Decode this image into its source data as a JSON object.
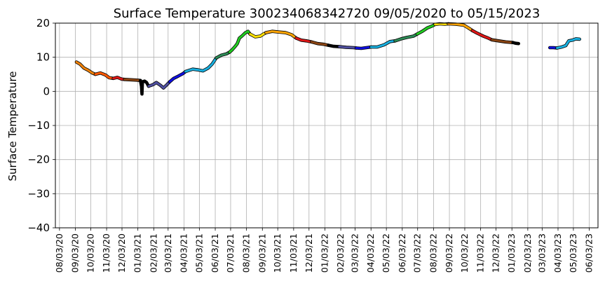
{
  "chart_data": {
    "type": "line",
    "title": "Surface Temperature 300234068342720  09/05/2020 to 05/15/2023",
    "ylabel": "Surface Temperature",
    "xlabel": "",
    "ylim": [
      -40,
      20
    ],
    "yticks": [
      20,
      10,
      0,
      -10,
      -20,
      -30,
      -40
    ],
    "yticklabels": [
      "20",
      "10",
      "0",
      "−10",
      "−20",
      "−30",
      "−40"
    ],
    "xlim": [
      "2020-07-26",
      "2023-06-20"
    ],
    "xticks": [
      "2020-08-03",
      "2020-09-03",
      "2020-10-03",
      "2020-11-03",
      "2020-12-03",
      "2021-01-03",
      "2021-02-03",
      "2021-03-03",
      "2021-04-03",
      "2021-05-03",
      "2021-06-03",
      "2021-07-03",
      "2021-08-03",
      "2021-09-03",
      "2021-10-03",
      "2021-11-03",
      "2021-12-03",
      "2022-01-03",
      "2022-02-03",
      "2022-03-03",
      "2022-04-03",
      "2022-05-03",
      "2022-06-03",
      "2022-07-03",
      "2022-08-03",
      "2022-09-03",
      "2022-10-03",
      "2022-11-03",
      "2022-12-03",
      "2023-01-03",
      "2023-02-03",
      "2023-03-03",
      "2023-04-03",
      "2023-05-03",
      "2023-06-03"
    ],
    "xticklabels": [
      "08/03/20",
      "09/03/20",
      "10/03/20",
      "11/03/20",
      "12/03/20",
      "01/03/21",
      "02/03/21",
      "03/03/21",
      "04/03/21",
      "05/03/21",
      "06/03/21",
      "07/03/21",
      "08/03/21",
      "09/03/21",
      "10/03/21",
      "11/03/21",
      "12/03/21",
      "01/03/22",
      "02/03/22",
      "03/03/22",
      "04/03/22",
      "05/03/22",
      "06/03/22",
      "07/03/22",
      "08/03/22",
      "09/03/22",
      "10/03/22",
      "11/03/22",
      "12/03/22",
      "01/03/23",
      "02/03/23",
      "03/03/23",
      "04/03/23",
      "05/03/23",
      "06/03/23"
    ],
    "grid": true,
    "legend": "none",
    "series": [
      {
        "color": "#f0820a",
        "points": [
          [
            "2020-09-05",
            8.6
          ],
          [
            "2020-09-12",
            8.0
          ],
          [
            "2020-09-20",
            6.8
          ],
          [
            "2020-09-28",
            6.2
          ],
          [
            "2020-10-06",
            5.4
          ],
          [
            "2020-10-12",
            5.0
          ]
        ]
      },
      {
        "color": "#ff5a00",
        "points": [
          [
            "2020-10-12",
            5.0
          ],
          [
            "2020-10-22",
            5.4
          ],
          [
            "2020-11-01",
            4.8
          ],
          [
            "2020-11-08",
            4.0
          ],
          [
            "2020-11-16",
            3.8
          ]
        ]
      },
      {
        "color": "#e01818",
        "points": [
          [
            "2020-11-16",
            3.8
          ],
          [
            "2020-11-24",
            4.1
          ],
          [
            "2020-12-02",
            3.6
          ],
          [
            "2020-12-08",
            3.5
          ]
        ]
      },
      {
        "color": "#8b4513",
        "points": [
          [
            "2020-12-08",
            3.5
          ],
          [
            "2020-12-20",
            3.4
          ],
          [
            "2021-01-01",
            3.3
          ],
          [
            "2021-01-08",
            3.2
          ]
        ]
      },
      {
        "color": "#000000",
        "points": [
          [
            "2021-01-08",
            3.2
          ],
          [
            "2021-01-10",
            1.5
          ],
          [
            "2021-01-11",
            -0.8
          ],
          [
            "2021-01-12",
            2.8
          ],
          [
            "2021-01-16",
            3.0
          ],
          [
            "2021-01-20",
            2.6
          ],
          [
            "2021-01-24",
            1.5
          ]
        ]
      },
      {
        "color": "#5050a0",
        "points": [
          [
            "2021-01-24",
            1.5
          ],
          [
            "2021-02-02",
            2.0
          ],
          [
            "2021-02-08",
            2.6
          ],
          [
            "2021-02-16",
            1.8
          ],
          [
            "2021-02-22",
            1.0
          ],
          [
            "2021-03-01",
            2.0
          ],
          [
            "2021-03-06",
            2.8
          ]
        ]
      },
      {
        "color": "#1010e0",
        "points": [
          [
            "2021-03-06",
            2.8
          ],
          [
            "2021-03-14",
            3.8
          ],
          [
            "2021-03-22",
            4.4
          ],
          [
            "2021-04-01",
            5.2
          ],
          [
            "2021-04-06",
            5.8
          ]
        ]
      },
      {
        "color": "#19b0e0",
        "points": [
          [
            "2021-04-06",
            5.8
          ],
          [
            "2021-04-20",
            6.5
          ],
          [
            "2021-05-01",
            6.3
          ],
          [
            "2021-05-10",
            6.0
          ],
          [
            "2021-05-20",
            6.8
          ],
          [
            "2021-05-28",
            8.0
          ],
          [
            "2021-06-05",
            9.8
          ]
        ]
      },
      {
        "color": "#2e8b57",
        "points": [
          [
            "2021-06-05",
            9.8
          ],
          [
            "2021-06-15",
            10.6
          ],
          [
            "2021-06-25",
            11.0
          ],
          [
            "2021-07-01",
            11.5
          ]
        ]
      },
      {
        "color": "#22cc22",
        "points": [
          [
            "2021-07-01",
            11.5
          ],
          [
            "2021-07-06",
            12.2
          ],
          [
            "2021-07-12",
            13.2
          ],
          [
            "2021-07-16",
            14.0
          ],
          [
            "2021-07-20",
            15.6
          ],
          [
            "2021-07-25",
            16.2
          ],
          [
            "2021-08-01",
            17.2
          ],
          [
            "2021-08-06",
            17.6
          ],
          [
            "2021-08-10",
            16.8
          ]
        ]
      },
      {
        "color": "#ffe000",
        "points": [
          [
            "2021-08-10",
            16.8
          ],
          [
            "2021-08-20",
            16.0
          ],
          [
            "2021-08-30",
            16.2
          ],
          [
            "2021-09-05",
            16.8
          ],
          [
            "2021-09-10",
            17.2
          ]
        ]
      },
      {
        "color": "#ffa500",
        "points": [
          [
            "2021-09-10",
            17.2
          ],
          [
            "2021-09-22",
            17.6
          ],
          [
            "2021-10-05",
            17.4
          ],
          [
            "2021-10-18",
            17.2
          ],
          [
            "2021-10-30",
            16.6
          ],
          [
            "2021-11-08",
            15.6
          ]
        ]
      },
      {
        "color": "#e01818",
        "points": [
          [
            "2021-11-08",
            15.6
          ],
          [
            "2021-11-18",
            15.0
          ],
          [
            "2021-11-28",
            14.8
          ],
          [
            "2021-12-08",
            14.5
          ]
        ]
      },
      {
        "color": "#8b4513",
        "points": [
          [
            "2021-12-08",
            14.5
          ],
          [
            "2021-12-20",
            14.0
          ],
          [
            "2022-01-01",
            13.8
          ],
          [
            "2022-01-10",
            13.5
          ]
        ]
      },
      {
        "color": "#000000",
        "points": [
          [
            "2022-01-10",
            13.5
          ],
          [
            "2022-01-20",
            13.2
          ],
          [
            "2022-01-31",
            13.1
          ]
        ]
      },
      {
        "color": "#5050a0",
        "points": [
          [
            "2022-01-31",
            13.1
          ],
          [
            "2022-02-14",
            12.9
          ],
          [
            "2022-02-28",
            12.8
          ],
          [
            "2022-03-05",
            12.7
          ]
        ]
      },
      {
        "color": "#1010e0",
        "points": [
          [
            "2022-03-05",
            12.7
          ],
          [
            "2022-03-15",
            12.6
          ],
          [
            "2022-03-25",
            12.8
          ],
          [
            "2022-04-03",
            13.0
          ]
        ]
      },
      {
        "color": "#19b0e0",
        "points": [
          [
            "2022-04-03",
            13.0
          ],
          [
            "2022-04-15",
            13.0
          ],
          [
            "2022-04-28",
            13.6
          ],
          [
            "2022-05-10",
            14.6
          ],
          [
            "2022-05-20",
            14.8
          ]
        ]
      },
      {
        "color": "#2e8b57",
        "points": [
          [
            "2022-05-20",
            14.8
          ],
          [
            "2022-06-01",
            15.4
          ],
          [
            "2022-06-12",
            15.8
          ],
          [
            "2022-06-25",
            16.2
          ],
          [
            "2022-07-02",
            16.8
          ]
        ]
      },
      {
        "color": "#22cc22",
        "points": [
          [
            "2022-07-02",
            16.8
          ],
          [
            "2022-07-12",
            17.6
          ],
          [
            "2022-07-22",
            18.6
          ],
          [
            "2022-08-01",
            19.2
          ],
          [
            "2022-08-06",
            19.6
          ]
        ]
      },
      {
        "color": "#ffe000",
        "points": [
          [
            "2022-08-06",
            19.6
          ],
          [
            "2022-08-15",
            19.8
          ],
          [
            "2022-08-25",
            19.7
          ],
          [
            "2022-09-01",
            19.8
          ]
        ]
      },
      {
        "color": "#ffa500",
        "points": [
          [
            "2022-09-01",
            19.8
          ],
          [
            "2022-09-15",
            19.7
          ],
          [
            "2022-10-01",
            19.4
          ],
          [
            "2022-10-10",
            18.6
          ],
          [
            "2022-10-18",
            17.8
          ]
        ]
      },
      {
        "color": "#e01818",
        "points": [
          [
            "2022-10-18",
            17.8
          ],
          [
            "2022-10-28",
            17.0
          ],
          [
            "2022-11-08",
            16.2
          ],
          [
            "2022-11-18",
            15.6
          ],
          [
            "2022-11-25",
            15.1
          ]
        ]
      },
      {
        "color": "#8b4513",
        "points": [
          [
            "2022-11-25",
            15.1
          ],
          [
            "2022-12-08",
            14.8
          ],
          [
            "2022-12-22",
            14.5
          ],
          [
            "2023-01-05",
            14.3
          ]
        ]
      },
      {
        "color": "#000000",
        "points": [
          [
            "2023-01-05",
            14.3
          ],
          [
            "2023-01-10",
            14.1
          ],
          [
            "2023-01-16",
            14.0
          ]
        ]
      },
      {
        "color": "#1010e0",
        "points": [
          [
            "2023-03-18",
            12.8
          ],
          [
            "2023-03-25",
            12.8
          ],
          [
            "2023-04-01",
            12.7
          ]
        ]
      },
      {
        "color": "#19b0e0",
        "points": [
          [
            "2023-04-01",
            12.7
          ],
          [
            "2023-04-10",
            13.0
          ],
          [
            "2023-04-18",
            13.4
          ],
          [
            "2023-04-24",
            14.8
          ],
          [
            "2023-05-01",
            15.0
          ],
          [
            "2023-05-08",
            15.4
          ],
          [
            "2023-05-15",
            15.3
          ]
        ]
      }
    ]
  }
}
